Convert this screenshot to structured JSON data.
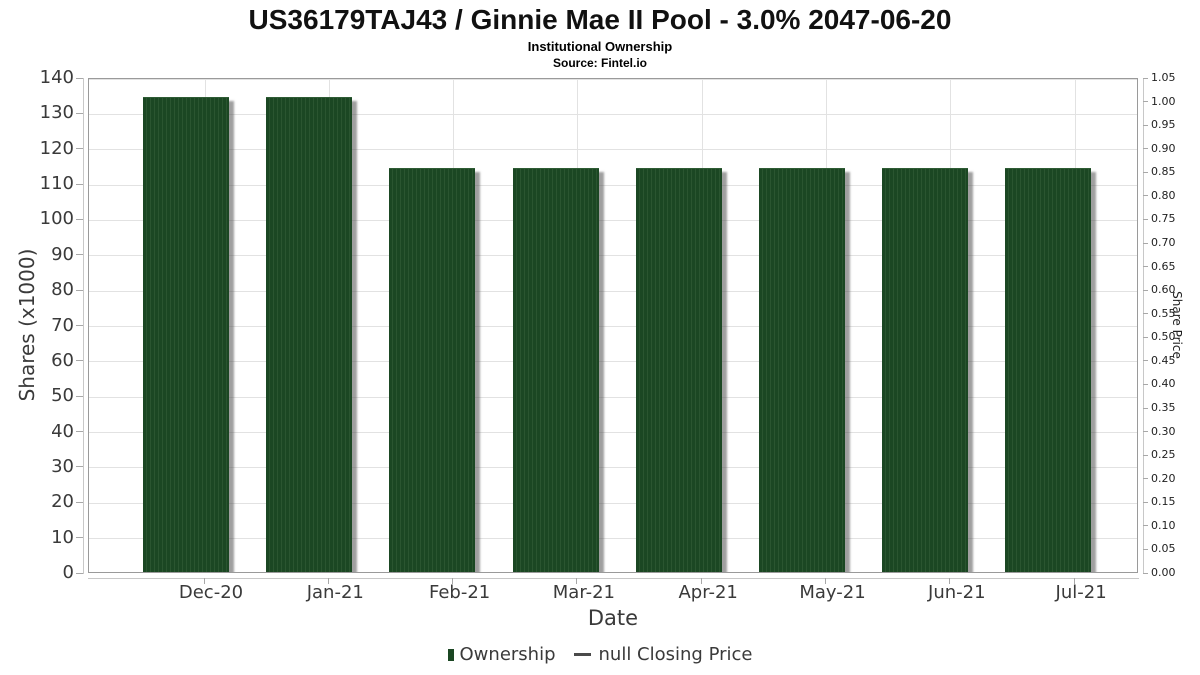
{
  "header": {
    "title": "US36179TAJ43 / Ginnie Mae II Pool - 3.0% 2047-06-20",
    "subtitle": "Institutional Ownership",
    "source": "Source: Fintel.io"
  },
  "chart_data": {
    "type": "bar",
    "title": "US36179TAJ43 / Ginnie Mae II Pool - 3.0% 2047-06-20",
    "subtitle": "Institutional Ownership",
    "source": "Source: Fintel.io",
    "categories": [
      "Dec-20",
      "Jan-21",
      "Feb-21",
      "Mar-21",
      "Apr-21",
      "May-21",
      "Jun-21",
      "Jul-21"
    ],
    "series": [
      {
        "name": "Ownership",
        "type": "bar",
        "color": "#1b4723",
        "values": [
          134,
          134,
          114,
          114,
          114,
          114,
          114,
          114
        ]
      },
      {
        "name": "null Closing Price",
        "type": "line",
        "color": "#4a4a4a",
        "values": null
      }
    ],
    "xlabel": "Date",
    "ylabel_left": "Shares (x1000)",
    "ylabel_right": "Share Price",
    "ylim_left": [
      0,
      140
    ],
    "ylim_right": [
      0,
      1.05
    ],
    "yticks_left": [
      0,
      10,
      20,
      30,
      40,
      50,
      60,
      70,
      80,
      90,
      100,
      110,
      120,
      130,
      140
    ],
    "yticks_right": [
      "0.00",
      "0.05",
      "0.10",
      "0.15",
      "0.20",
      "0.25",
      "0.30",
      "0.35",
      "0.40",
      "0.45",
      "0.50",
      "0.55",
      "0.60",
      "0.65",
      "0.70",
      "0.75",
      "0.80",
      "0.85",
      "0.90",
      "0.95",
      "1.00",
      "1.05"
    ],
    "grid": true,
    "legend_position": "bottom"
  },
  "legend": {
    "items": [
      {
        "label": "Ownership",
        "marker": "square",
        "color": "#1b4723"
      },
      {
        "label": "null Closing Price",
        "marker": "line",
        "color": "#4a4a4a"
      }
    ]
  },
  "colors": {
    "bar_fill": "#1b4723",
    "bar_stripe": "#2a5530",
    "bar_shadow": "rgba(80,80,80,0.55)",
    "gridline": "#e2e2e2",
    "frame": "#9a9a9a",
    "tick_label": "#3a3a3a",
    "title_text": "#111111",
    "background": "#ffffff"
  }
}
